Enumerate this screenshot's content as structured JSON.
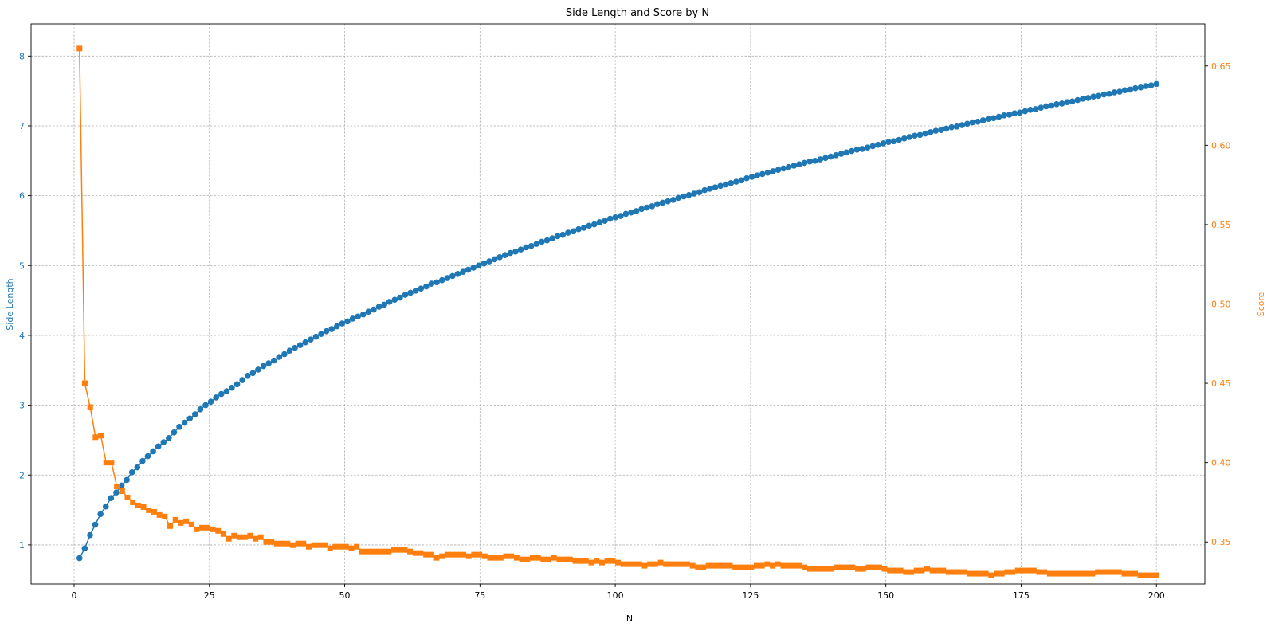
{
  "chart_data": {
    "type": "line",
    "title": "Side Length and Score by N",
    "xlabel": "N",
    "xlim": [
      -7.95,
      208.95
    ],
    "xticks": [
      0,
      25,
      50,
      75,
      100,
      125,
      150,
      175,
      200
    ],
    "grid": true,
    "left_axis": {
      "label": "Side Length",
      "color": "#1f77b4",
      "lim": [
        0.44,
        8.46
      ],
      "ticks": [
        1,
        2,
        3,
        4,
        5,
        6,
        7,
        8
      ]
    },
    "right_axis": {
      "label": "Score",
      "color": "#ff7f0e",
      "lim": [
        0.3235,
        0.6765
      ],
      "ticks": [
        0.35,
        0.4,
        0.45,
        0.5,
        0.55,
        0.6,
        0.65
      ]
    },
    "series": [
      {
        "axis": "left",
        "marker": "circle",
        "color": "#1f77b4",
        "x_start": 1,
        "x_end": 200,
        "values": [
          0.81,
          0.95,
          1.14,
          1.29,
          1.44,
          1.55,
          1.67,
          1.75,
          1.85,
          1.93,
          2.04,
          2.11,
          2.2,
          2.27,
          2.34,
          2.41,
          2.47,
          2.53,
          2.61,
          2.69,
          2.75,
          2.81,
          2.87,
          2.94,
          3.0,
          3.05,
          3.11,
          3.16,
          3.2,
          3.25,
          3.3,
          3.36,
          3.42,
          3.46,
          3.51,
          3.56,
          3.6,
          3.64,
          3.69,
          3.73,
          3.78,
          3.82,
          3.86,
          3.9,
          3.94,
          3.98,
          4.02,
          4.06,
          4.09,
          4.13,
          4.17,
          4.2,
          4.24,
          4.27,
          4.3,
          4.34,
          4.37,
          4.41,
          4.44,
          4.48,
          4.51,
          4.54,
          4.58,
          4.61,
          4.64,
          4.67,
          4.7,
          4.74,
          4.76,
          4.79,
          4.82,
          4.85,
          4.88,
          4.91,
          4.94,
          4.97,
          5.0,
          5.03,
          5.06,
          5.09,
          5.12,
          5.15,
          5.18,
          5.2,
          5.23,
          5.26,
          5.28,
          5.31,
          5.34,
          5.36,
          5.39,
          5.42,
          5.44,
          5.47,
          5.49,
          5.52,
          5.54,
          5.57,
          5.59,
          5.62,
          5.64,
          5.67,
          5.69,
          5.71,
          5.74,
          5.76,
          5.78,
          5.81,
          5.83,
          5.85,
          5.88,
          5.9,
          5.92,
          5.94,
          5.97,
          5.99,
          6.01,
          6.03,
          6.05,
          6.08,
          6.1,
          6.12,
          6.14,
          6.16,
          6.18,
          6.2,
          6.22,
          6.25,
          6.27,
          6.29,
          6.31,
          6.33,
          6.35,
          6.37,
          6.39,
          6.41,
          6.43,
          6.45,
          6.47,
          6.49,
          6.5,
          6.52,
          6.54,
          6.56,
          6.58,
          6.6,
          6.62,
          6.64,
          6.66,
          6.67,
          6.69,
          6.71,
          6.73,
          6.75,
          6.77,
          6.78,
          6.8,
          6.82,
          6.84,
          6.86,
          6.87,
          6.89,
          6.91,
          6.93,
          6.94,
          6.96,
          6.98,
          6.99,
          7.01,
          7.03,
          7.05,
          7.06,
          7.08,
          7.1,
          7.11,
          7.13,
          7.15,
          7.16,
          7.18,
          7.19,
          7.21,
          7.23,
          7.24,
          7.26,
          7.28,
          7.29,
          7.31,
          7.32,
          7.34,
          7.35,
          7.37,
          7.39,
          7.4,
          7.42,
          7.43,
          7.45,
          7.46,
          7.48,
          7.49,
          7.51,
          7.52,
          7.54,
          7.55,
          7.57,
          7.58,
          7.6
        ]
      },
      {
        "axis": "right",
        "marker": "square",
        "color": "#ff7f0e",
        "x_start": 1,
        "x_end": 200,
        "values": [
          0.661,
          0.45,
          0.435,
          0.416,
          0.417,
          0.4,
          0.4,
          0.385,
          0.382,
          0.378,
          0.375,
          0.373,
          0.372,
          0.37,
          0.369,
          0.367,
          0.366,
          0.36,
          0.364,
          0.362,
          0.363,
          0.361,
          0.358,
          0.359,
          0.359,
          0.358,
          0.357,
          0.355,
          0.352,
          0.354,
          0.353,
          0.353,
          0.354,
          0.352,
          0.353,
          0.35,
          0.35,
          0.349,
          0.349,
          0.349,
          0.348,
          0.349,
          0.349,
          0.347,
          0.348,
          0.348,
          0.348,
          0.346,
          0.347,
          0.347,
          0.347,
          0.346,
          0.347,
          0.344,
          0.344,
          0.344,
          0.344,
          0.344,
          0.344,
          0.345,
          0.345,
          0.345,
          0.344,
          0.343,
          0.343,
          0.342,
          0.342,
          0.34,
          0.341,
          0.342,
          0.342,
          0.342,
          0.342,
          0.341,
          0.342,
          0.342,
          0.341,
          0.34,
          0.34,
          0.34,
          0.341,
          0.341,
          0.34,
          0.339,
          0.339,
          0.34,
          0.34,
          0.339,
          0.339,
          0.34,
          0.339,
          0.339,
          0.339,
          0.338,
          0.338,
          0.338,
          0.337,
          0.338,
          0.337,
          0.338,
          0.338,
          0.337,
          0.336,
          0.336,
          0.336,
          0.336,
          0.335,
          0.336,
          0.336,
          0.337,
          0.336,
          0.336,
          0.336,
          0.336,
          0.336,
          0.335,
          0.334,
          0.334,
          0.335,
          0.335,
          0.335,
          0.335,
          0.335,
          0.334,
          0.334,
          0.334,
          0.334,
          0.335,
          0.335,
          0.336,
          0.335,
          0.336,
          0.335,
          0.335,
          0.335,
          0.335,
          0.334,
          0.333,
          0.333,
          0.333,
          0.333,
          0.333,
          0.334,
          0.334,
          0.334,
          0.334,
          0.333,
          0.333,
          0.334,
          0.334,
          0.334,
          0.333,
          0.332,
          0.332,
          0.332,
          0.331,
          0.331,
          0.332,
          0.332,
          0.333,
          0.332,
          0.332,
          0.332,
          0.331,
          0.331,
          0.331,
          0.331,
          0.33,
          0.33,
          0.33,
          0.33,
          0.329,
          0.33,
          0.33,
          0.331,
          0.331,
          0.332,
          0.332,
          0.332,
          0.332,
          0.331,
          0.331,
          0.33,
          0.33,
          0.33,
          0.33,
          0.33,
          0.33,
          0.33,
          0.33,
          0.33,
          0.331,
          0.331,
          0.331,
          0.331,
          0.331,
          0.33,
          0.33,
          0.33,
          0.329,
          0.329,
          0.329,
          0.329
        ]
      }
    ]
  }
}
